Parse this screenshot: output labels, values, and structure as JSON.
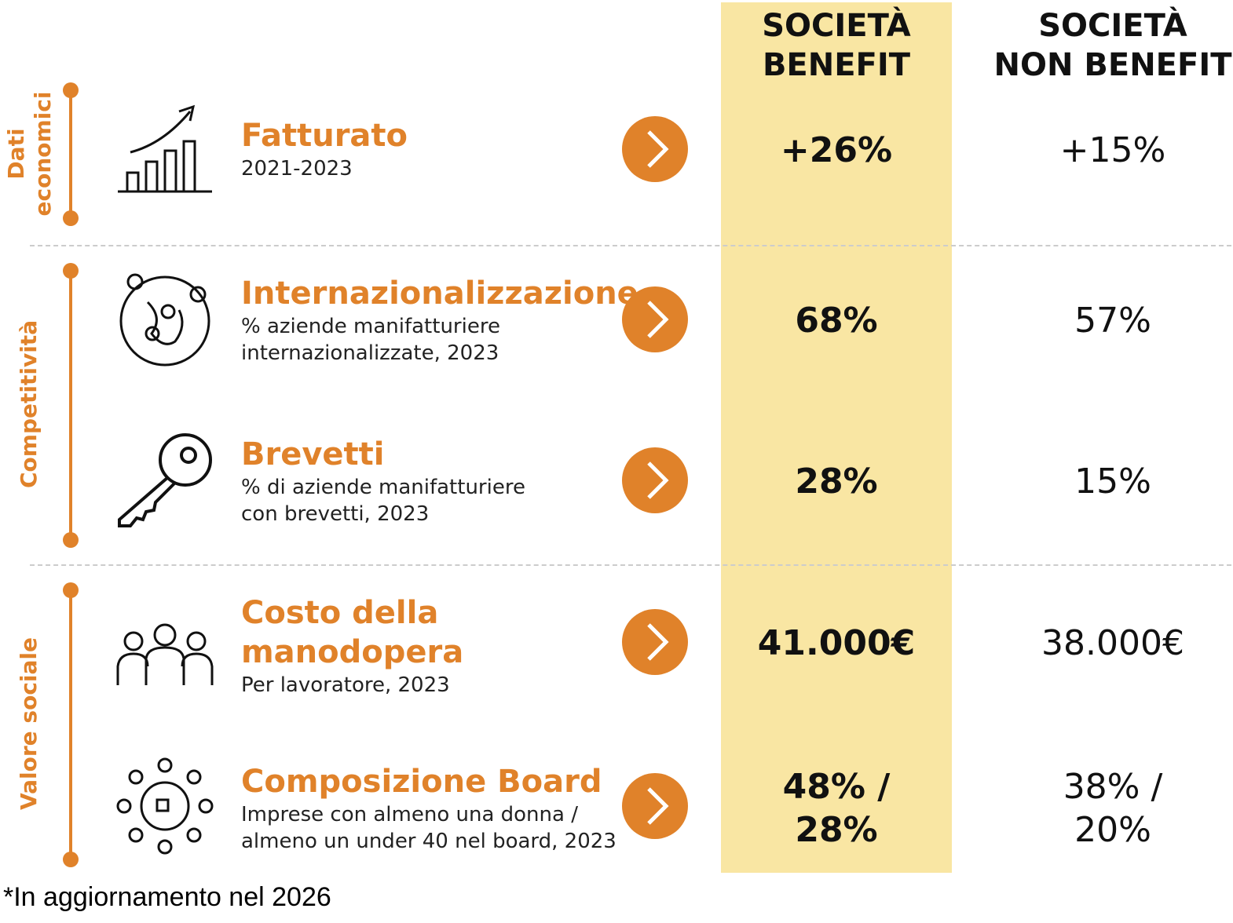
{
  "colors": {
    "accent": "#E0822A",
    "highlight": "#F9E6A3"
  },
  "headers": {
    "benefit": [
      "SOCIETÀ",
      "BENEFIT"
    ],
    "non_benefit": [
      "SOCIETÀ",
      "NON BENEFIT"
    ]
  },
  "sections": [
    {
      "label": [
        "Dati",
        "economici"
      ]
    },
    {
      "label": [
        "Competitività"
      ]
    },
    {
      "label": [
        "Valore sociale"
      ]
    }
  ],
  "rows": [
    {
      "icon": "chart-growth-icon",
      "title": "Fatturato",
      "sub": [
        "2021-2023"
      ],
      "benefit": "+26%",
      "non_benefit": "+15%"
    },
    {
      "icon": "globe-pins-icon",
      "title": "Internazionalizzazione",
      "sub": [
        "% aziende manifatturiere",
        "internazionalizzate, 2023"
      ],
      "benefit": "68%",
      "non_benefit": "57%"
    },
    {
      "icon": "key-icon",
      "title": "Brevetti",
      "sub": [
        "% di aziende manifatturiere",
        "con brevetti, 2023"
      ],
      "benefit": "28%",
      "non_benefit": "15%"
    },
    {
      "icon": "workers-icon",
      "title": [
        "Costo della",
        "manodopera"
      ],
      "sub": [
        "Per lavoratore, 2023"
      ],
      "benefit": "41.000€",
      "non_benefit": "38.000€"
    },
    {
      "icon": "board-table-icon",
      "title": "Composizione Board",
      "sub": [
        "Imprese con almeno una donna /",
        "almeno un under 40 nel board, 2023"
      ],
      "benefit": [
        "48% /",
        "28%"
      ],
      "non_benefit": [
        "38% /",
        "20%"
      ]
    }
  ],
  "footnote": "*In aggiornamento nel 2026"
}
